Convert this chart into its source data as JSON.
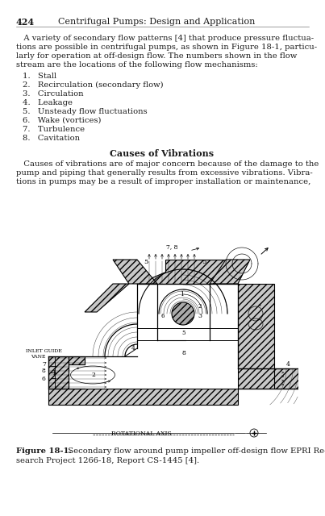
{
  "page_number": "424",
  "header": "Centrifugal Pumps: Design and Application",
  "bg_color": "#ffffff",
  "text_color": "#1a1a1a",
  "para1_lines": [
    "   A variety of secondary flow patterns [4] that produce pressure fluctua-",
    "tions are possible in centrifugal pumps, as shown in Figure 18-1, particu-",
    "larly for operation at off-design flow. The numbers shown in the flow",
    "stream are the locations of the following flow mechanisms:"
  ],
  "list_items": [
    "1.   Stall",
    "2.   Recirculation (secondary flow)",
    "3.   Circulation",
    "4.   Leakage",
    "5.   Unsteady flow fluctuations",
    "6.   Wake (vortices)",
    "7.   Turbulence",
    "8.   Cavitation"
  ],
  "section_title": "Causes of Vibrations",
  "para2_lines": [
    "   Causes of vibrations are of major concern because of the damage to the",
    "pump and piping that generally results from excessive vibrations. Vibra-",
    "tions in pumps may be a result of improper installation or maintenance,"
  ],
  "cap_bold": "Figure 18-1.",
  "cap_rest1": "  Secondary flow around pump impeller off-design flow EPRI Re-",
  "cap_line2": "search Project 1266-18, Report CS-1445 [4]."
}
